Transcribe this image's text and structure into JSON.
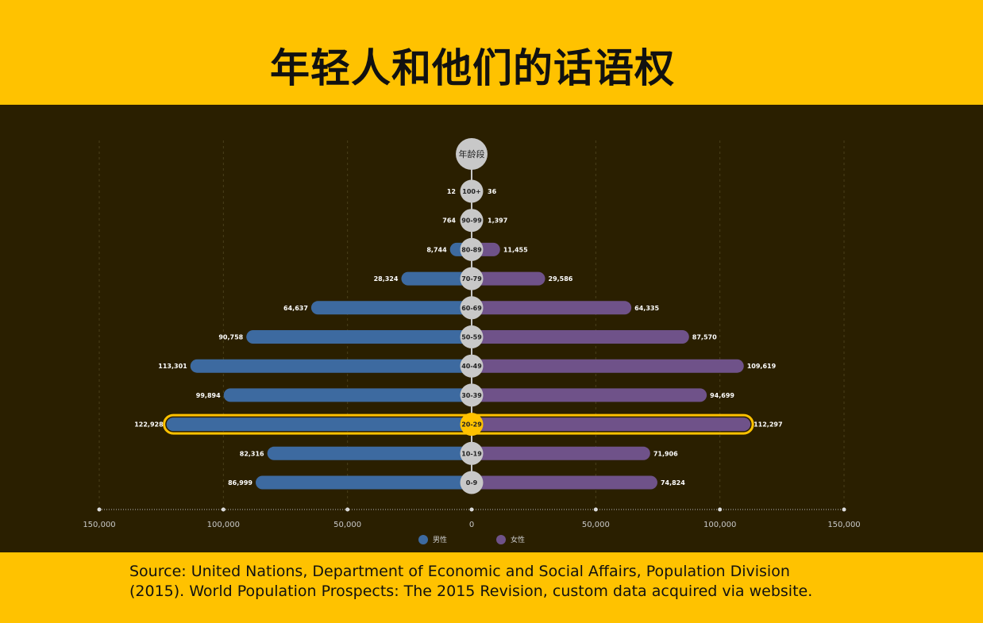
{
  "header": {
    "title": "年轻人和他们的话语权"
  },
  "footer": {
    "source": "Source: United Nations, Department of Economic and Social Affairs, Population Division (2015). World Population Prospects: The 2015 Revision, custom data acquired via website."
  },
  "colors": {
    "background": "#FFC200",
    "panel": "#2A1F00",
    "male": "#3D6AA0",
    "female": "#6F5289",
    "highlight": "#FFC200",
    "node": "#C8C8C8"
  },
  "chart_data": {
    "type": "bar",
    "orientation": "horizontal-diverging",
    "axis_title": "年龄段",
    "categories": [
      "100+",
      "90-99",
      "80-89",
      "70-79",
      "60-69",
      "50-59",
      "40-49",
      "30-39",
      "20-29",
      "10-19",
      "0-9"
    ],
    "series": [
      {
        "name": "男性",
        "values": [
          12,
          764,
          8744,
          28324,
          64637,
          90758,
          113301,
          99894,
          122928,
          82316,
          86999
        ]
      },
      {
        "name": "女性",
        "values": [
          36,
          1397,
          11455,
          29586,
          64335,
          87570,
          109619,
          94699,
          112297,
          71906,
          74824
        ]
      }
    ],
    "value_labels": {
      "male": [
        "12",
        "764",
        "8,744",
        "28,324",
        "64,637",
        "90,758",
        "113,301",
        "99,894",
        "122,928",
        "82,316",
        "86,999"
      ],
      "female": [
        "36",
        "1,397",
        "11,455",
        "29,586",
        "64,335",
        "87,570",
        "109,619",
        "94,699",
        "112,297",
        "71,906",
        "74,824"
      ]
    },
    "highlighted_category": "20-29",
    "xlim": [
      -150000,
      150000
    ],
    "x_ticks": [
      -150000,
      -100000,
      -50000,
      0,
      50000,
      100000,
      150000
    ],
    "x_tick_labels": [
      "150,000",
      "100,000",
      "50,000",
      "0",
      "50,000",
      "100,000",
      "150,000"
    ],
    "legend": {
      "position": "bottom",
      "entries": [
        "男性",
        "女性"
      ]
    },
    "grid": true
  }
}
